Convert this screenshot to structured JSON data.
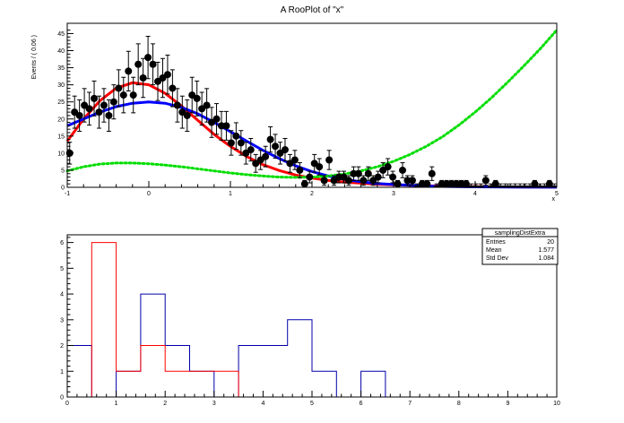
{
  "chart_data": [
    {
      "type": "scatter",
      "title": "A RooPlot of \"x\"",
      "xlabel": "x",
      "ylabel": "Events / ( 0.06 )",
      "xlim": [
        -1,
        5
      ],
      "ylim": [
        0,
        48
      ],
      "xticks": [
        -1,
        0,
        1,
        2,
        3,
        4,
        5
      ],
      "yticks": [
        0,
        5,
        10,
        15,
        20,
        25,
        30,
        35,
        40,
        45
      ],
      "grid": false,
      "colors": {
        "data": "#000000",
        "fit_red": "#ff0000",
        "fit_blue": "#0000ff",
        "fit_green": "#00dd00"
      },
      "points": {
        "x": [
          -0.97,
          -0.91,
          -0.85,
          -0.79,
          -0.73,
          -0.67,
          -0.61,
          -0.55,
          -0.49,
          -0.43,
          -0.37,
          -0.31,
          -0.25,
          -0.19,
          -0.13,
          -0.07,
          -0.01,
          0.05,
          0.11,
          0.17,
          0.23,
          0.29,
          0.35,
          0.41,
          0.47,
          0.53,
          0.59,
          0.65,
          0.71,
          0.77,
          0.83,
          0.89,
          0.95,
          1.01,
          1.07,
          1.13,
          1.19,
          1.25,
          1.31,
          1.37,
          1.43,
          1.49,
          1.55,
          1.61,
          1.67,
          1.73,
          1.79,
          1.85,
          1.91,
          1.97,
          2.03,
          2.09,
          2.15,
          2.21,
          2.27,
          2.33,
          2.39,
          2.45,
          2.51,
          2.57,
          2.63,
          2.69,
          2.75,
          2.81,
          2.87,
          2.93,
          2.99,
          3.05,
          3.11,
          3.17,
          3.23,
          3.29,
          3.35,
          3.41,
          3.47,
          3.53,
          3.59,
          3.65,
          3.71,
          3.77,
          3.83,
          3.89,
          3.95,
          4.01,
          4.07,
          4.13,
          4.19,
          4.25,
          4.31,
          4.37,
          4.43,
          4.49,
          4.55,
          4.61,
          4.67,
          4.73,
          4.79,
          4.85,
          4.91,
          4.97
        ],
        "y": [
          10,
          22,
          21,
          24,
          23,
          26,
          22,
          24,
          21,
          25,
          29,
          27,
          34,
          27,
          36,
          32,
          38,
          36,
          31,
          32,
          33,
          29,
          24,
          22,
          21,
          27,
          26,
          23,
          24,
          19,
          20,
          18,
          18,
          13,
          15,
          13,
          10,
          11,
          7,
          8,
          9,
          14,
          12,
          10,
          11,
          7,
          8,
          5,
          1,
          3,
          7,
          6,
          2,
          8,
          2,
          3,
          3,
          2,
          4,
          4,
          2,
          4,
          2,
          3,
          5,
          6,
          3,
          1,
          5,
          2,
          2,
          0,
          1,
          1,
          4,
          0,
          1,
          1,
          1,
          1,
          1,
          1,
          0,
          0,
          0,
          2,
          0,
          1,
          0,
          0,
          0,
          0,
          0,
          0,
          0,
          1,
          0,
          0,
          1,
          0
        ],
        "errors": [
          3.2,
          4.7,
          4.6,
          4.9,
          4.8,
          5.1,
          4.7,
          4.9,
          4.6,
          5.0,
          5.4,
          5.2,
          5.8,
          5.2,
          6.0,
          5.7,
          6.2,
          6.0,
          5.6,
          5.7,
          5.7,
          5.4,
          4.9,
          4.7,
          4.6,
          5.2,
          5.1,
          4.8,
          4.9,
          4.4,
          4.5,
          4.2,
          4.2,
          3.6,
          3.9,
          3.6,
          3.2,
          3.3,
          2.6,
          2.8,
          3.0,
          3.7,
          3.5,
          3.2,
          3.3,
          2.6,
          2.8,
          2.2,
          1.0,
          1.7,
          2.6,
          2.4,
          1.4,
          2.8,
          1.4,
          1.7,
          1.7,
          1.4,
          2.0,
          2.0,
          1.4,
          2.0,
          1.4,
          1.7,
          2.2,
          2.4,
          1.7,
          1.0,
          2.2,
          1.4,
          1.4,
          1.0,
          1.0,
          1.0,
          2.0,
          1.0,
          1.0,
          1.0,
          1.0,
          1.0,
          1.0,
          1.0,
          1.0,
          1.0,
          1.0,
          1.4,
          1.0,
          1.0,
          1.0,
          1.0,
          1.0,
          1.0,
          1.0,
          1.0,
          1.0,
          1.0,
          1.0,
          1.0,
          1.0,
          1.0
        ]
      },
      "curves": [
        {
          "name": "",
          "color": "#ff0000",
          "style": "solid",
          "x": [
            -1.0,
            -0.8,
            -0.6,
            -0.4,
            -0.2,
            0.0,
            0.2,
            0.4,
            0.6,
            0.8,
            1.0,
            1.2,
            1.4,
            1.6,
            1.8,
            2.0,
            2.2,
            2.4,
            2.6,
            2.8,
            3.0,
            3.5,
            4.0,
            4.5,
            5.0
          ],
          "y": [
            13.5,
            20.0,
            25.3,
            29.0,
            30.6,
            30.0,
            27.5,
            23.8,
            19.6,
            15.5,
            12.0,
            9.0,
            6.6,
            4.9,
            3.6,
            2.7,
            2.0,
            1.5,
            1.2,
            0.9,
            0.7,
            0.4,
            0.2,
            0.1,
            0.05
          ]
        },
        {
          "name": "",
          "color": "#0000ff",
          "style": "solid",
          "x": [
            -1.0,
            -0.8,
            -0.6,
            -0.4,
            -0.2,
            0.0,
            0.2,
            0.4,
            0.6,
            0.8,
            1.0,
            1.2,
            1.4,
            1.6,
            1.8,
            2.0,
            2.2,
            2.4,
            2.6,
            2.8,
            3.0,
            3.5,
            4.0,
            4.5,
            5.0
          ],
          "y": [
            18.0,
            20.0,
            22.0,
            23.6,
            24.6,
            25.0,
            24.6,
            23.4,
            21.5,
            19.0,
            16.3,
            13.5,
            10.8,
            8.4,
            6.3,
            4.6,
            3.3,
            2.3,
            1.6,
            1.1,
            0.8,
            0.3,
            0.12,
            0.05,
            0.02
          ]
        },
        {
          "name": "",
          "color": "#00dd00",
          "style": "dotted",
          "x": [
            -1.0,
            -0.8,
            -0.6,
            -0.4,
            -0.2,
            0.0,
            0.2,
            0.4,
            0.6,
            0.8,
            1.0,
            1.2,
            1.4,
            1.6,
            1.8,
            2.0,
            2.2,
            2.4,
            2.6,
            2.8,
            3.0,
            3.2,
            3.4,
            3.6,
            3.8,
            4.0,
            4.2,
            4.4,
            4.6,
            4.8,
            5.0
          ],
          "y": [
            4.8,
            6.0,
            6.8,
            7.1,
            7.1,
            6.9,
            6.5,
            6.0,
            5.4,
            4.8,
            4.2,
            3.7,
            3.3,
            3.0,
            2.9,
            3.0,
            3.3,
            3.9,
            4.8,
            6.0,
            7.6,
            9.6,
            12.0,
            14.8,
            18.2,
            22.0,
            26.2,
            30.8,
            35.6,
            40.6,
            46.0
          ]
        }
      ]
    },
    {
      "type": "histogram",
      "title": "",
      "xlabel": "",
      "ylabel": "",
      "xlim": [
        0,
        10
      ],
      "ylim": [
        0,
        6.3
      ],
      "xticks": [
        0,
        1,
        2,
        3,
        4,
        5,
        6,
        7,
        8,
        9,
        10
      ],
      "yticks": [
        0,
        1,
        2,
        3,
        4,
        5,
        6
      ],
      "bin_edges": [
        0,
        0.5,
        1,
        1.5,
        2,
        2.5,
        3,
        3.5,
        4,
        4.5,
        5,
        5.5,
        6,
        6.5,
        7,
        7.5,
        8,
        8.5,
        9,
        9.5,
        10
      ],
      "series": [
        {
          "name": "",
          "color": "#0000aa",
          "values": [
            2,
            0,
            1,
            4,
            2,
            1,
            0,
            2,
            2,
            3,
            1,
            0,
            1,
            0,
            0,
            0,
            0,
            0,
            0,
            0
          ]
        },
        {
          "name": "",
          "color": "#ff0000",
          "values": [
            0,
            6,
            1,
            2,
            1,
            1,
            1,
            0,
            0,
            0,
            0,
            0,
            0,
            0,
            0,
            0,
            0,
            0,
            0,
            0
          ]
        }
      ],
      "stats_box": {
        "title": "samplingDistExtra",
        "placement": "top-right",
        "rows": [
          {
            "label": "Entries",
            "value": "20"
          },
          {
            "label": "Mean",
            "value": "1.577"
          },
          {
            "label": "Std Dev",
            "value": "1.084"
          }
        ]
      }
    }
  ]
}
